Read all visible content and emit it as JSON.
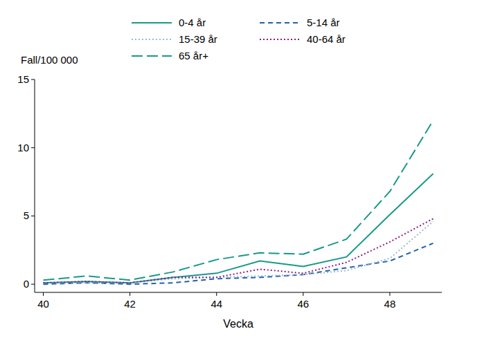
{
  "chart_data": {
    "type": "line",
    "x_label": "Vecka",
    "y_label": "Fall/100 000",
    "x": [
      40,
      41,
      42,
      43,
      44,
      45,
      46,
      47,
      48,
      49
    ],
    "xlim": [
      39.8,
      49.2
    ],
    "xticks": [
      40,
      42,
      44,
      46,
      48
    ],
    "ylim": [
      -0.6,
      15
    ],
    "yticks": [
      0,
      5,
      10,
      15
    ],
    "grid": false,
    "legend": "top",
    "series": [
      {
        "name": "0-4 år",
        "color": "#16998a",
        "line_style": "solid",
        "values": [
          0.1,
          0.2,
          0.1,
          0.5,
          0.8,
          1.7,
          1.3,
          2.0,
          5.1,
          8.1
        ]
      },
      {
        "name": "5-14 år",
        "color": "#1f62aa",
        "line_style": "dashed",
        "values": [
          0.0,
          0.1,
          0.0,
          0.1,
          0.4,
          0.5,
          0.7,
          1.2,
          1.7,
          3.0
        ]
      },
      {
        "name": "15-39 år",
        "color": "#9fb6d6",
        "line_style": "dotted",
        "values": [
          0.1,
          0.1,
          0.1,
          0.4,
          0.5,
          0.6,
          0.7,
          1.0,
          1.9,
          4.6
        ]
      },
      {
        "name": "40-64 år",
        "color": "#8a1c7c",
        "line_style": "dotted",
        "values": [
          0.1,
          0.2,
          0.1,
          0.5,
          0.5,
          1.1,
          0.8,
          1.6,
          3.1,
          4.8
        ]
      },
      {
        "name": "65 år+",
        "color": "#16998a",
        "line_style": "long-dashed",
        "values": [
          0.3,
          0.6,
          0.3,
          0.9,
          1.8,
          2.3,
          2.2,
          3.3,
          6.8,
          12.0
        ]
      }
    ]
  }
}
